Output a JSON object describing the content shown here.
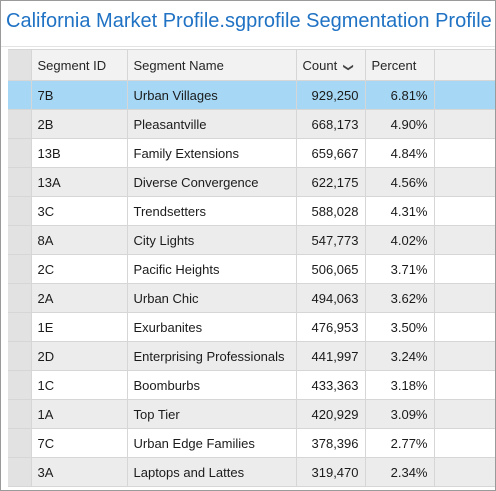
{
  "title": "California Market Profile.sgprofile Segmentation Profile",
  "columns": {
    "segment_id": "Segment ID",
    "segment_name": "Segment Name",
    "count": "Count",
    "percent": "Percent"
  },
  "sort_icon": "chevron-down-icon",
  "rows": [
    {
      "id": "7B",
      "name": "Urban Villages",
      "count": "929,250",
      "percent": "6.81%"
    },
    {
      "id": "2B",
      "name": "Pleasantville",
      "count": "668,173",
      "percent": "4.90%"
    },
    {
      "id": "13B",
      "name": "Family Extensions",
      "count": "659,667",
      "percent": "4.84%"
    },
    {
      "id": "13A",
      "name": "Diverse Convergence",
      "count": "622,175",
      "percent": "4.56%"
    },
    {
      "id": "3C",
      "name": "Trendsetters",
      "count": "588,028",
      "percent": "4.31%"
    },
    {
      "id": "8A",
      "name": "City Lights",
      "count": "547,773",
      "percent": "4.02%"
    },
    {
      "id": "2C",
      "name": "Pacific Heights",
      "count": "506,065",
      "percent": "3.71%"
    },
    {
      "id": "2A",
      "name": "Urban Chic",
      "count": "494,063",
      "percent": "3.62%"
    },
    {
      "id": "1E",
      "name": "Exurbanites",
      "count": "476,953",
      "percent": "3.50%"
    },
    {
      "id": "2D",
      "name": "Enterprising Professionals",
      "count": "441,997",
      "percent": "3.24%"
    },
    {
      "id": "1C",
      "name": "Boomburbs",
      "count": "433,363",
      "percent": "3.18%"
    },
    {
      "id": "1A",
      "name": "Top Tier",
      "count": "420,929",
      "percent": "3.09%"
    },
    {
      "id": "7C",
      "name": "Urban Edge Families",
      "count": "378,396",
      "percent": "2.77%"
    },
    {
      "id": "3A",
      "name": "Laptops and Lattes",
      "count": "319,470",
      "percent": "2.34%"
    }
  ],
  "colors": {
    "title": "#1f72c4",
    "selected_row": "#a6d8f5",
    "alt_row": "#ececec",
    "header": "#f2f2f2"
  }
}
